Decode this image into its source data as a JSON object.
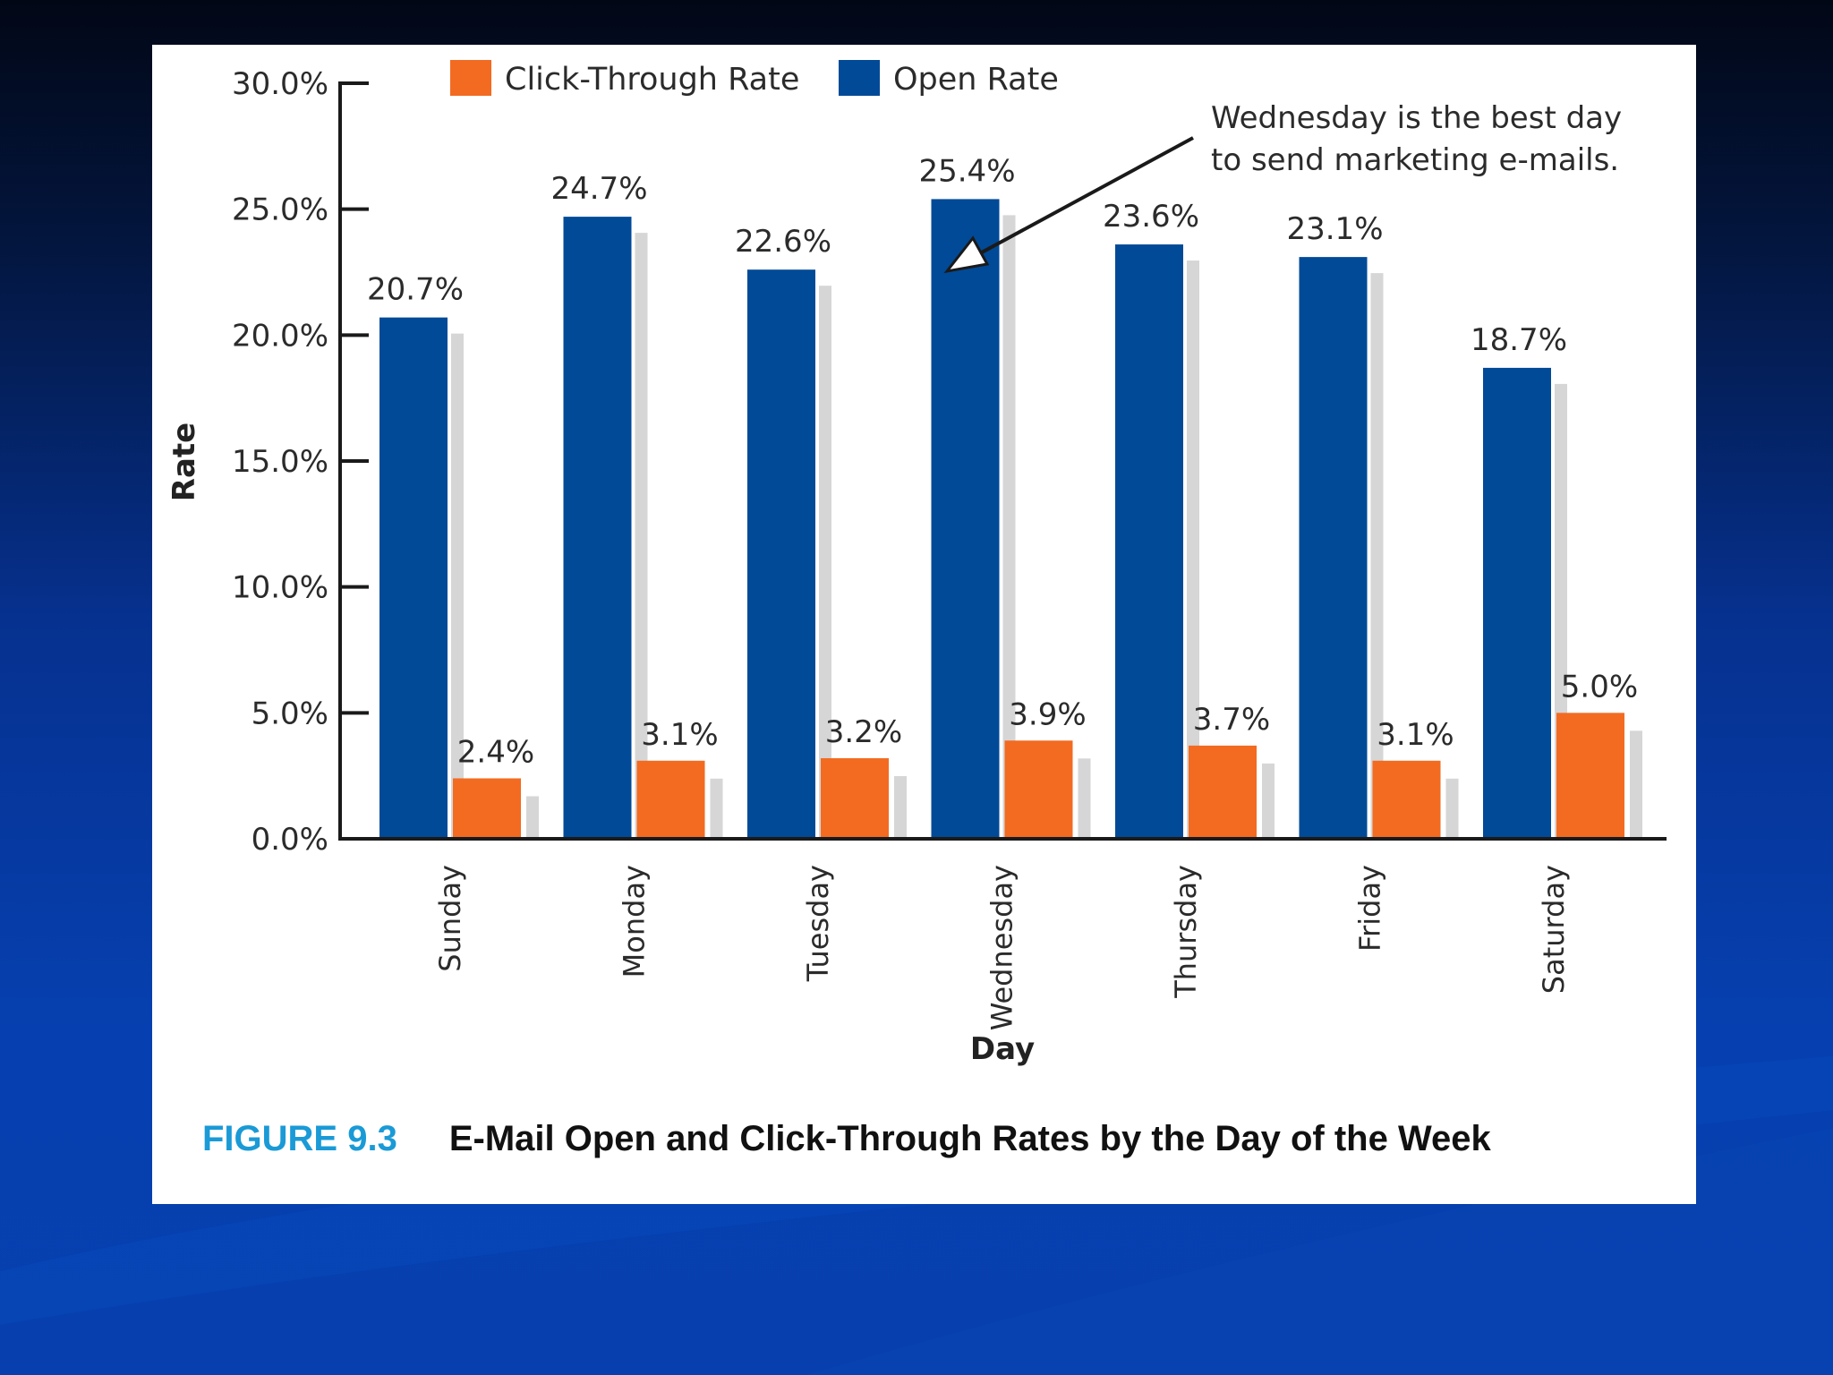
{
  "colors": {
    "click_through": "#f26b21",
    "open": "#004a97",
    "shadow": "#d6d6d6",
    "figure_number": "#1a9ad6"
  },
  "caption": {
    "figure_number": "FIGURE 9.3",
    "title": "E-Mail Open and Click-Through Rates by the Day of the Week"
  },
  "chart_data": {
    "type": "bar",
    "categories": [
      "Sunday",
      "Monday",
      "Tuesday",
      "Wednesday",
      "Thursday",
      "Friday",
      "Saturday"
    ],
    "series": [
      {
        "name": "Open Rate",
        "values": [
          20.7,
          24.7,
          22.6,
          25.4,
          23.6,
          23.1,
          18.7
        ],
        "labels": [
          "20.7%",
          "24.7%",
          "22.6%",
          "25.4%",
          "23.6%",
          "23.1%",
          "18.7%"
        ]
      },
      {
        "name": "Click-Through Rate",
        "values": [
          2.4,
          3.1,
          3.2,
          3.9,
          3.7,
          3.1,
          5.0
        ],
        "labels": [
          "2.4%",
          "3.1%",
          "3.2%",
          "3.9%",
          "3.7%",
          "3.1%",
          "5.0%"
        ]
      }
    ],
    "legend": [
      "Click-Through Rate",
      "Open Rate"
    ],
    "legend_position": "top",
    "ylim": [
      0,
      30
    ],
    "yticks": [
      0,
      5,
      10,
      15,
      20,
      25,
      30
    ],
    "ytick_labels": [
      "0.0%",
      "5.0%",
      "10.0%",
      "15.0%",
      "20.0%",
      "25.0%",
      "30.0%"
    ],
    "xlabel": "Day",
    "ylabel": "Rate",
    "grid": false,
    "annotation": {
      "lines": [
        "Wednesday is the best day",
        "to send marketing e-mails."
      ],
      "points_to": "Wednesday"
    }
  }
}
